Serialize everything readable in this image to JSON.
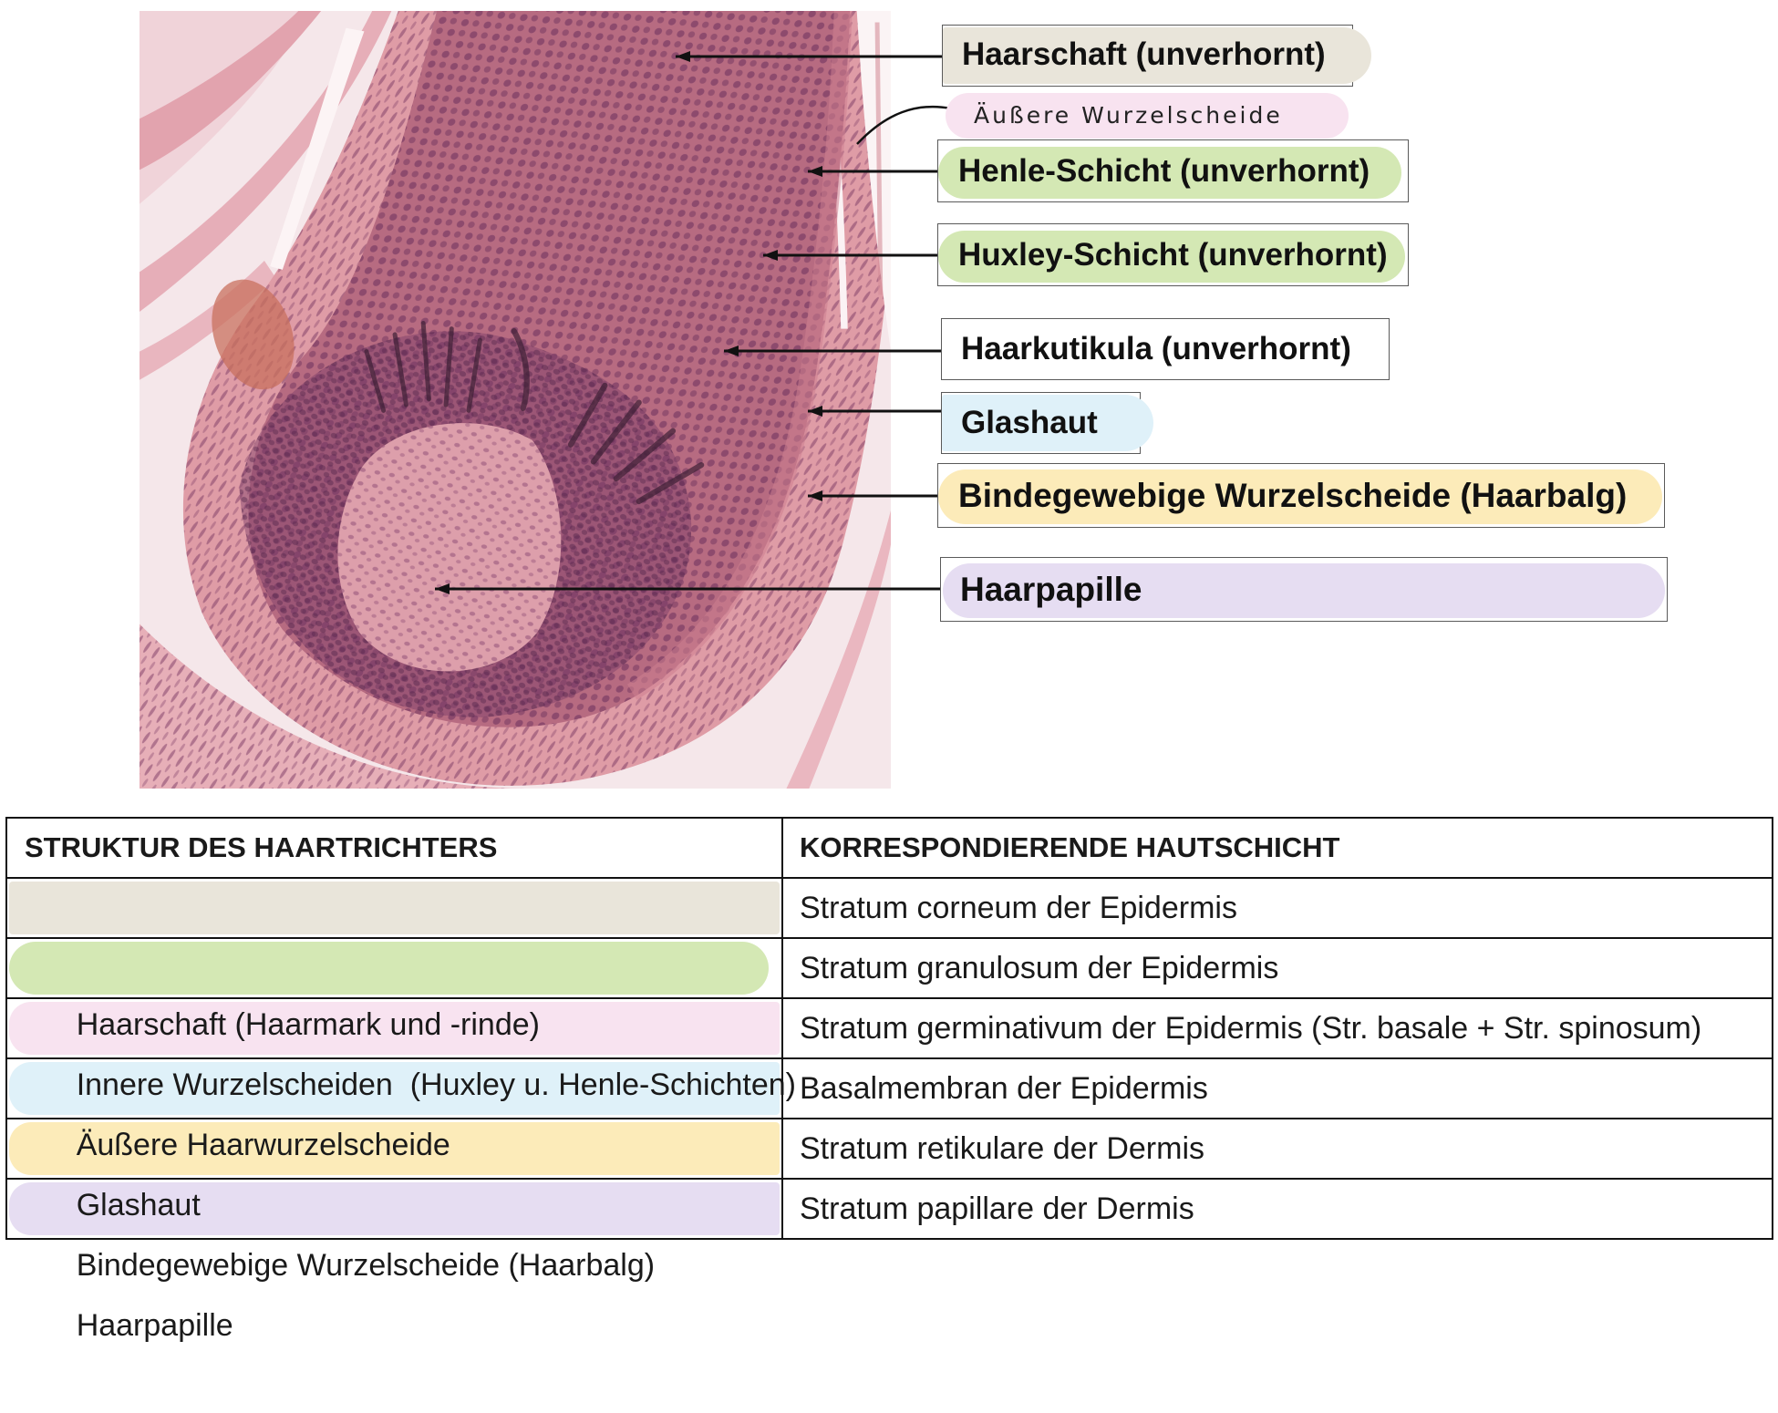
{
  "figure": {
    "labels": [
      {
        "text": "Haarschaft (unverhornt)",
        "color": "#e9e5da"
      },
      {
        "text": "Äußere Wurzelscheide",
        "color": "#f8e3f0"
      },
      {
        "text": "Henle-Schicht (unverhornt)",
        "color": "#d4e8b4"
      },
      {
        "text": "Huxley-Schicht (unverhornt)",
        "color": "#d4e8b4"
      },
      {
        "text": "Haarkutikula (unverhornt)"
      },
      {
        "text": "Glashaut",
        "color": "#dff1f9"
      },
      {
        "text": "Bindegewebige Wurzelscheide (Haarbalg)",
        "color": "#fcebb9"
      },
      {
        "text": "Haarpapille",
        "color": "#e6ddf2"
      }
    ]
  },
  "table": {
    "headers": [
      "STRUKTUR DES HAARTRICHTERS",
      "KORRESPONDIERENDE HAUTSCHICHT"
    ],
    "rows": [
      {
        "struktur": "Haarschaft (Haarmark und -rinde)",
        "hautschicht": "Stratum corneum der Epidermis",
        "color": "#e9e5da"
      },
      {
        "struktur": "Innere Wurzelscheiden  (Huxley u. Henle-Schichten)",
        "hautschicht": "Stratum granulosum der Epidermis",
        "color": "#d4e8b4"
      },
      {
        "struktur": "Äußere Haarwurzelscheide",
        "hautschicht": "Stratum germinativum der Epidermis (Str. basale + Str. spinosum)",
        "color": "#f8e3f0"
      },
      {
        "struktur": "Glashaut",
        "hautschicht": "Basalmembran der Epidermis",
        "color": "#dff1f9"
      },
      {
        "struktur": "Bindegewebige Wurzelscheide (Haarbalg)",
        "hautschicht": "Stratum retikulare der Dermis",
        "color": "#fcebb9"
      },
      {
        "struktur": "Haarpapille",
        "hautschicht": "Stratum papillare der Dermis",
        "color": "#e6ddf2"
      }
    ]
  }
}
